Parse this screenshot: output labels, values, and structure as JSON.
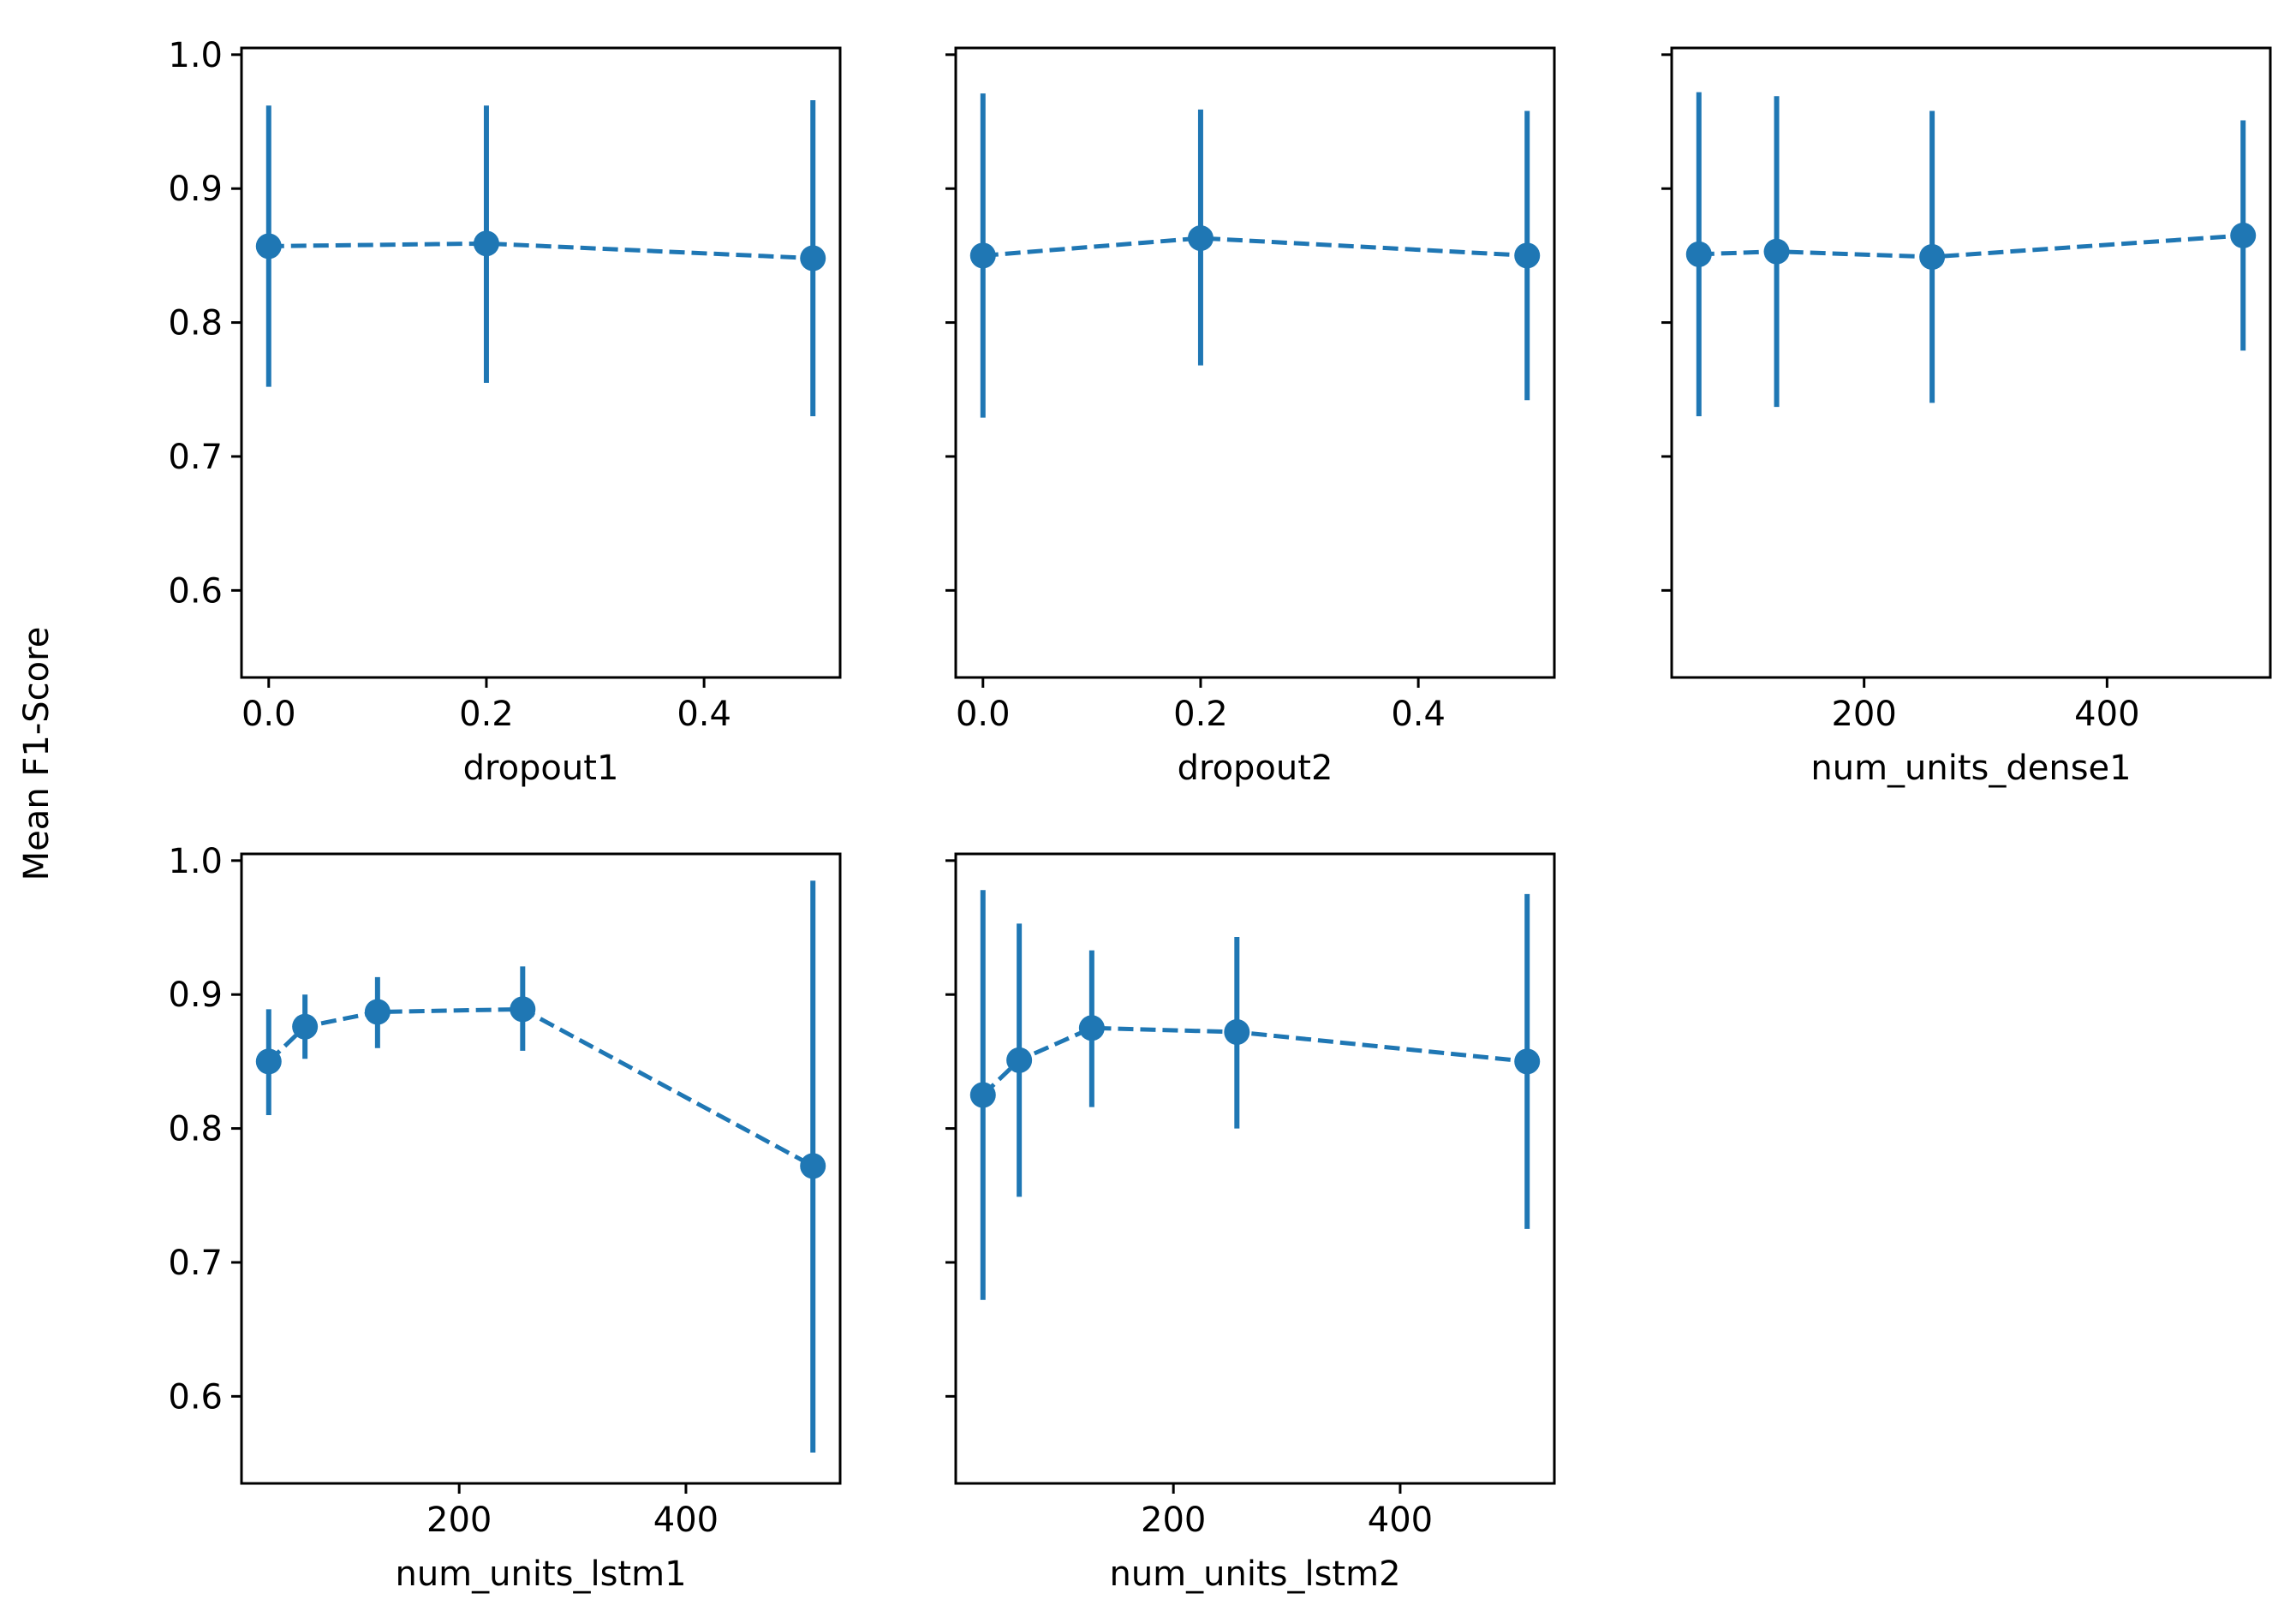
{
  "figure": {
    "ylabel": "Mean F1-Score",
    "color": "#1f77b4"
  },
  "chart_data": [
    {
      "type": "line",
      "xlabel": "dropout1",
      "xlim": [
        -0.025,
        0.525
      ],
      "ylim": [
        0.535,
        1.005
      ],
      "xticks": [
        0.0,
        0.2,
        0.4
      ],
      "xtick_labels": [
        "0.0",
        "0.2",
        "0.4"
      ],
      "yticks": [
        0.6,
        0.7,
        0.8,
        0.9,
        1.0
      ],
      "ytick_labels": [
        "0.6",
        "0.7",
        "0.8",
        "0.9",
        "1.0"
      ],
      "show_ytick_labels": true,
      "x": [
        0.0,
        0.2,
        0.5
      ],
      "y": [
        0.857,
        0.859,
        0.848
      ],
      "yerr_low": [
        0.752,
        0.755,
        0.73
      ],
      "yerr_high": [
        0.962,
        0.962,
        0.966
      ]
    },
    {
      "type": "line",
      "xlabel": "dropout2",
      "xlim": [
        -0.025,
        0.525
      ],
      "ylim": [
        0.535,
        1.005
      ],
      "xticks": [
        0.0,
        0.2,
        0.4
      ],
      "xtick_labels": [
        "0.0",
        "0.2",
        "0.4"
      ],
      "yticks": [
        0.6,
        0.7,
        0.8,
        0.9,
        1.0
      ],
      "ytick_labels": [
        "0.6",
        "0.7",
        "0.8",
        "0.9",
        "1.0"
      ],
      "show_ytick_labels": false,
      "x": [
        0.0,
        0.2,
        0.5
      ],
      "y": [
        0.85,
        0.863,
        0.85
      ],
      "yerr_low": [
        0.729,
        0.768,
        0.742
      ],
      "yerr_high": [
        0.971,
        0.959,
        0.958
      ]
    },
    {
      "type": "line",
      "xlabel": "num_units_dense1",
      "xlim": [
        41.6,
        534.4
      ],
      "ylim": [
        0.535,
        1.005
      ],
      "xticks": [
        200,
        400
      ],
      "xtick_labels": [
        "200",
        "400"
      ],
      "yticks": [
        0.6,
        0.7,
        0.8,
        0.9,
        1.0
      ],
      "ytick_labels": [
        "0.6",
        "0.7",
        "0.8",
        "0.9",
        "1.0"
      ],
      "show_ytick_labels": false,
      "x": [
        64,
        128,
        256,
        512
      ],
      "y": [
        0.851,
        0.853,
        0.849,
        0.865
      ],
      "yerr_low": [
        0.73,
        0.737,
        0.74,
        0.779
      ],
      "yerr_high": [
        0.972,
        0.969,
        0.958,
        0.951
      ]
    },
    {
      "type": "line",
      "xlabel": "num_units_lstm1",
      "xlim": [
        8.0,
        536.0
      ],
      "ylim": [
        0.535,
        1.005
      ],
      "xticks": [
        200,
        400
      ],
      "xtick_labels": [
        "200",
        "400"
      ],
      "yticks": [
        0.6,
        0.7,
        0.8,
        0.9,
        1.0
      ],
      "ytick_labels": [
        "0.6",
        "0.7",
        "0.8",
        "0.9",
        "1.0"
      ],
      "show_ytick_labels": true,
      "x": [
        32,
        64,
        128,
        256,
        512
      ],
      "y": [
        0.85,
        0.876,
        0.887,
        0.889,
        0.772
      ],
      "yerr_low": [
        0.81,
        0.852,
        0.86,
        0.858,
        0.558
      ],
      "yerr_high": [
        0.889,
        0.9,
        0.913,
        0.921,
        0.985
      ]
    },
    {
      "type": "line",
      "xlabel": "num_units_lstm2",
      "xlim": [
        8.0,
        536.0
      ],
      "ylim": [
        0.535,
        1.005
      ],
      "xticks": [
        200,
        400
      ],
      "xtick_labels": [
        "200",
        "400"
      ],
      "yticks": [
        0.6,
        0.7,
        0.8,
        0.9,
        1.0
      ],
      "ytick_labels": [
        "0.6",
        "0.7",
        "0.8",
        "0.9",
        "1.0"
      ],
      "show_ytick_labels": false,
      "x": [
        32,
        64,
        128,
        256,
        512
      ],
      "y": [
        0.825,
        0.851,
        0.875,
        0.872,
        0.85
      ],
      "yerr_low": [
        0.672,
        0.749,
        0.816,
        0.8,
        0.725
      ],
      "yerr_high": [
        0.978,
        0.953,
        0.933,
        0.943,
        0.975
      ]
    }
  ]
}
